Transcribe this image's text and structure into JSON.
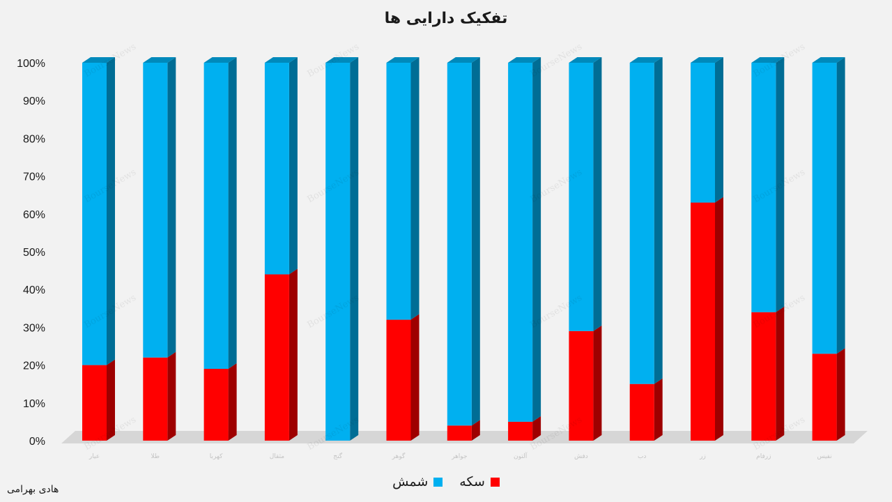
{
  "chart_data": {
    "type": "bar",
    "stacked": true,
    "percent": true,
    "title": "تفکیک دارایی ها",
    "categories": [
      "عیار",
      "طلا",
      "کهربا",
      "مثقال",
      "گنج",
      "گوهر",
      "جواهر",
      "آلتون",
      "دفش",
      "دب",
      "زر",
      "زرفام",
      "نفیس"
    ],
    "series": [
      {
        "name": "سکه",
        "color": "#ff0000",
        "values": [
          20,
          22,
          19,
          44,
          0,
          32,
          4,
          5,
          29,
          15,
          63,
          34,
          23
        ]
      },
      {
        "name": "شمش",
        "color": "#00b0f0",
        "values": [
          80,
          78,
          81,
          56,
          100,
          68,
          96,
          95,
          71,
          85,
          37,
          66,
          77
        ]
      }
    ],
    "ylim": [
      0,
      100
    ],
    "yticks": [
      "0%",
      "10%",
      "20%",
      "30%",
      "40%",
      "50%",
      "60%",
      "70%",
      "80%",
      "90%",
      "100%"
    ],
    "grid": false,
    "legend": "bottom"
  },
  "watermark": "BourseNews",
  "author": "هادی بهرامی"
}
